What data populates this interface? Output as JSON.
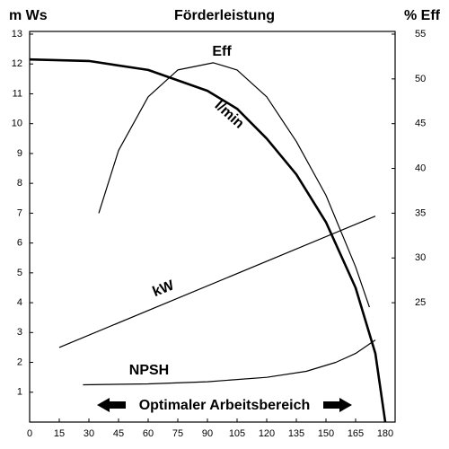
{
  "chart_data": {
    "type": "line",
    "title": "Förderleistung",
    "y_label": "m Ws",
    "y2_label": "% Eff",
    "annotation": "Optimaler Arbeitsbereich",
    "xlim": [
      0,
      185
    ],
    "xticks": [
      0,
      15,
      30,
      45,
      60,
      75,
      90,
      105,
      120,
      135,
      150,
      165,
      180
    ],
    "ylim": [
      0,
      13
    ],
    "yticks": [
      1,
      2,
      3,
      4,
      5,
      6,
      7,
      8,
      9,
      10,
      11,
      12,
      13
    ],
    "y2lim": [
      11.67,
      55
    ],
    "y2ticks": [
      25,
      30,
      35,
      40,
      45,
      50,
      55
    ],
    "grid": false,
    "series": [
      {
        "name": "l/min",
        "color": "#000000",
        "x": [
          0,
          30,
          60,
          90,
          105,
          120,
          135,
          150,
          165,
          175,
          180
        ],
        "values": [
          12.15,
          12.1,
          11.8,
          11.1,
          10.5,
          9.5,
          8.3,
          6.7,
          4.5,
          2.3,
          0
        ]
      },
      {
        "name": "Eff",
        "color": "#000000",
        "axis": "y2",
        "x": [
          35,
          45,
          60,
          75,
          93,
          105,
          120,
          135,
          150,
          165,
          172
        ],
        "values": [
          35,
          42,
          48,
          51,
          51.8,
          51,
          48,
          43,
          37,
          29,
          24.5
        ]
      },
      {
        "name": "kW",
        "color": "#000000",
        "x": [
          15,
          175
        ],
        "values": [
          2.5,
          6.9
        ]
      },
      {
        "name": "NPSH",
        "color": "#000000",
        "x": [
          27,
          60,
          90,
          120,
          140,
          155,
          165,
          175
        ],
        "values": [
          1.25,
          1.28,
          1.35,
          1.5,
          1.7,
          2.0,
          2.3,
          2.75
        ]
      }
    ]
  }
}
